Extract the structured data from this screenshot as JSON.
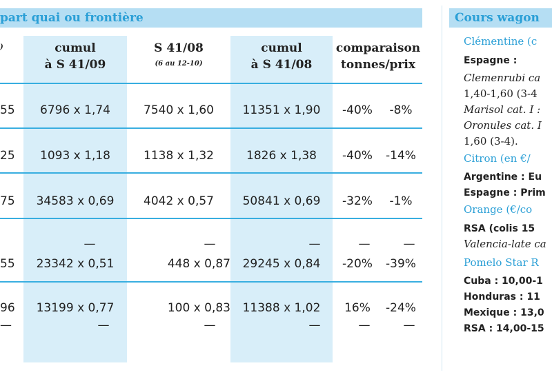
{
  "left_title": "part quai ou frontière",
  "right_title": "Cours wagon",
  "headers": [
    {
      "l1": "",
      "l2": ")"
    },
    {
      "l1": "cumul",
      "l2": "à S 41/09"
    },
    {
      "l1": "S 41/08",
      "l2": "(6 au 12-10)"
    },
    {
      "l1": "cumul",
      "l2": "à S 41/08"
    },
    {
      "l1": "comparaison",
      "l2": "tonnes/prix"
    }
  ],
  "rows": [
    {
      "c0": "55",
      "c1": "6796 x 1,74",
      "c2": "7540 x 1,60",
      "c3": "11351 x 1,90",
      "pct_t": "-40%",
      "pct_p": "-8%"
    },
    {
      "c0": "25",
      "c1": "1093 x 1,18",
      "c2": "1138 x 1,32",
      "c3": "1826 x 1,38",
      "pct_t": "-40%",
      "pct_p": "-14%"
    },
    {
      "c0": "75",
      "c1": "34583 x 0,69",
      "c2": "4042 x 0,57",
      "c3": "50841 x 0,69",
      "pct_t": "-32%",
      "pct_p": "-1%"
    },
    {
      "c0": "55",
      "c1": "23342 x 0,51",
      "c2": "448 x 0,87",
      "c3": "29245 x 0,84",
      "pct_t": "-20%",
      "pct_p": "-39%"
    },
    {
      "c0": "96",
      "c1": "13199 x 0,77",
      "c2": "100 x 0,83",
      "c3": "11388 x 1,02",
      "pct_t": "16%",
      "pct_p": "-24%"
    }
  ],
  "dash": "—",
  "right_lines": [
    {
      "t": "Clémentine (c",
      "s": "sec"
    },
    {
      "t": "Espagne :",
      "s": "b"
    },
    {
      "t": "Clemenrubi ca",
      "s": "i"
    },
    {
      "t": "1,40-1,60 (3-4",
      "s": ""
    },
    {
      "t": "Marisol cat. I :",
      "s": "i"
    },
    {
      "t": "Oronules cat. I",
      "s": "i"
    },
    {
      "t": "1,60 (3-4).",
      "s": ""
    },
    {
      "t": "Citron (en €/",
      "s": "sec"
    },
    {
      "t": "Argentine : Eu",
      "s": "b"
    },
    {
      "t": "Espagne : Prim",
      "s": "b"
    },
    {
      "t": "Orange (€/co",
      "s": "sec"
    },
    {
      "t": "RSA (colis 15",
      "s": "b"
    },
    {
      "t": "Valencia-late ca",
      "s": "i"
    },
    {
      "t": "Pomelo Star R",
      "s": "sec"
    },
    {
      "t": "Cuba : 10,00-1",
      "s": "b"
    },
    {
      "t": "Honduras : 11",
      "s": "b"
    },
    {
      "t": "Mexique : 13,0",
      "s": "b"
    },
    {
      "t": "RSA : 14,00-15",
      "s": "b"
    }
  ]
}
